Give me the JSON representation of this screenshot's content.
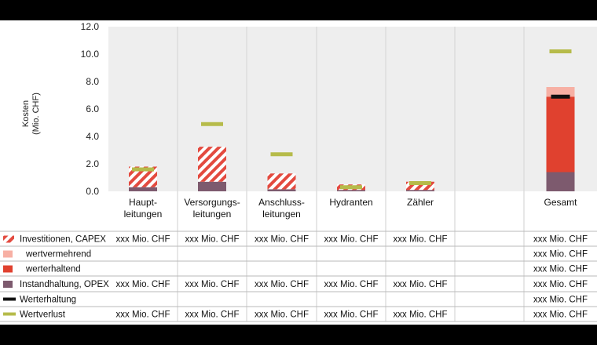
{
  "colors": {
    "plot_bg": "#eeeeee",
    "capex_hatch_fg": "#e34a3f",
    "capex_hatch_bg": "#ffffff",
    "wertvermehrend": "#f7b0a4",
    "werterhaltend": "#e0412f",
    "opex": "#7d5a6e",
    "werterhaltung": "#111111",
    "wertverlust": "#b6bb4a",
    "grid": "#d4d4d4"
  },
  "chart_data": {
    "type": "bar",
    "ylabel_lines": [
      "Kosten",
      "(Mio. CHF)"
    ],
    "ylim": [
      0,
      12
    ],
    "yticks": [
      "0.0",
      "2.0",
      "4.0",
      "6.0",
      "8.0",
      "10.0",
      "12.0"
    ],
    "categories": [
      {
        "label": [
          "Haupt-",
          "leitungen"
        ]
      },
      {
        "label": [
          "Versorgungs-",
          "leitungen"
        ]
      },
      {
        "label": [
          "Anschluss-",
          "leitungen"
        ]
      },
      {
        "label": [
          "Hydranten"
        ]
      },
      {
        "label": [
          "Zähler"
        ]
      },
      {
        "label": []
      },
      {
        "label": [
          "Gesamt"
        ]
      }
    ],
    "series": [
      {
        "name": "Instandhaltung, OPEX",
        "values": [
          0.3,
          0.7,
          0.15,
          0.1,
          0.1,
          null,
          1.4
        ]
      },
      {
        "name": "Investitionen, CAPEX",
        "values": [
          1.5,
          2.55,
          1.15,
          0.4,
          0.6,
          null,
          null
        ]
      },
      {
        "name": "werterhaltend",
        "values": [
          null,
          null,
          null,
          null,
          null,
          null,
          5.5
        ]
      },
      {
        "name": "wertvermehrend",
        "values": [
          null,
          null,
          null,
          null,
          null,
          null,
          0.7
        ]
      },
      {
        "name": "Werterhaltung",
        "values": [
          null,
          null,
          null,
          null,
          null,
          null,
          6.9
        ]
      },
      {
        "name": "Wertverlust",
        "values": [
          1.6,
          4.9,
          2.7,
          0.3,
          0.6,
          null,
          10.2
        ]
      }
    ]
  },
  "table": {
    "rows": [
      {
        "legend": "Investitionen, CAPEX",
        "swatch": "hatch",
        "cells": [
          "xxx Mio. CHF",
          "xxx Mio. CHF",
          "xxx Mio. CHF",
          "xxx Mio. CHF",
          "xxx Mio. CHF",
          "",
          "xxx Mio. CHF"
        ]
      },
      {
        "legend": "wertvermehrend",
        "swatch": "wertvermehrend",
        "cells": [
          "",
          "",
          "",
          "",
          "",
          "",
          "xxx Mio. CHF"
        ]
      },
      {
        "legend": "werterhaltend",
        "swatch": "werterhaltend",
        "cells": [
          "",
          "",
          "",
          "",
          "",
          "",
          "xxx Mio. CHF"
        ]
      },
      {
        "legend": "Instandhaltung, OPEX",
        "swatch": "opex",
        "cells": [
          "xxx Mio. CHF",
          "xxx Mio. CHF",
          "xxx Mio. CHF",
          "xxx Mio. CHF",
          "xxx Mio. CHF",
          "",
          "xxx Mio. CHF"
        ]
      },
      {
        "legend": "Werterhaltung",
        "swatch": "werterhaltung",
        "cells": [
          "",
          "",
          "",
          "",
          "",
          "",
          "xxx Mio. CHF"
        ]
      },
      {
        "legend": "Wertverlust",
        "swatch": "wertverlust",
        "cells": [
          "xxx Mio. CHF",
          "xxx Mio. CHF",
          "xxx Mio. CHF",
          "xxx Mio. CHF",
          "xxx Mio. CHF",
          "",
          "xxx Mio. CHF"
        ]
      }
    ]
  }
}
